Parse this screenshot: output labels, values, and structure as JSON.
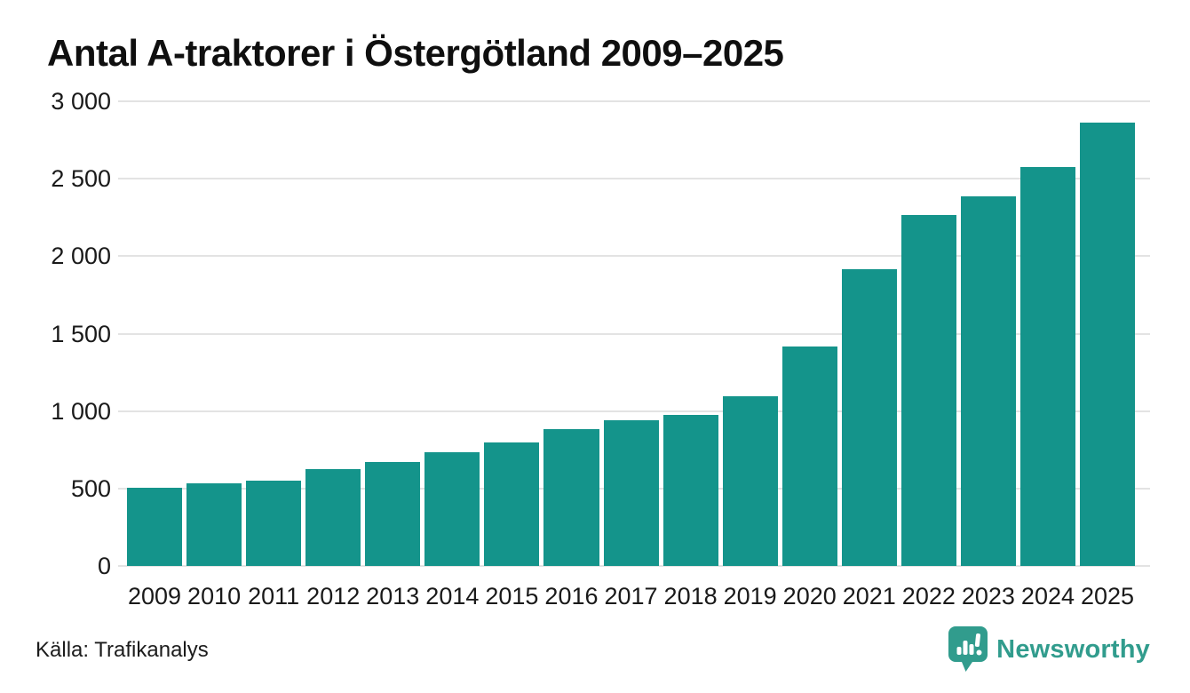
{
  "chart_data": {
    "type": "bar",
    "title": "Antal A-traktorer i Östergötland 2009–2025",
    "categories": [
      "2009",
      "2010",
      "2011",
      "2012",
      "2013",
      "2014",
      "2015",
      "2016",
      "2017",
      "2018",
      "2019",
      "2020",
      "2021",
      "2022",
      "2023",
      "2024",
      "2025"
    ],
    "values": [
      505,
      533,
      553,
      625,
      670,
      734,
      797,
      883,
      943,
      977,
      1095,
      1419,
      1917,
      2266,
      2386,
      2577,
      2863
    ],
    "xlabel": "",
    "ylabel": "",
    "ylim": [
      0,
      3000
    ],
    "yticks": [
      {
        "value": 0,
        "label": "0"
      },
      {
        "value": 500,
        "label": "500"
      },
      {
        "value": 1000,
        "label": "1 000"
      },
      {
        "value": 1500,
        "label": "1 500"
      },
      {
        "value": 2000,
        "label": "2 000"
      },
      {
        "value": 2500,
        "label": "2 500"
      },
      {
        "value": 3000,
        "label": "3 000"
      }
    ],
    "grid": "horizontal",
    "legend": "none"
  },
  "footer": {
    "source": "Källa: Trafikanalys",
    "brand": "Newsworthy",
    "logo_icon": "speech-bubble-bar-chart"
  },
  "colors": {
    "bar": "#14948B",
    "gridline": "#E3E3E3",
    "axis_text": "#1A1A1A",
    "title_text": "#0F0F0F",
    "brand_teal": "#319C8D"
  }
}
